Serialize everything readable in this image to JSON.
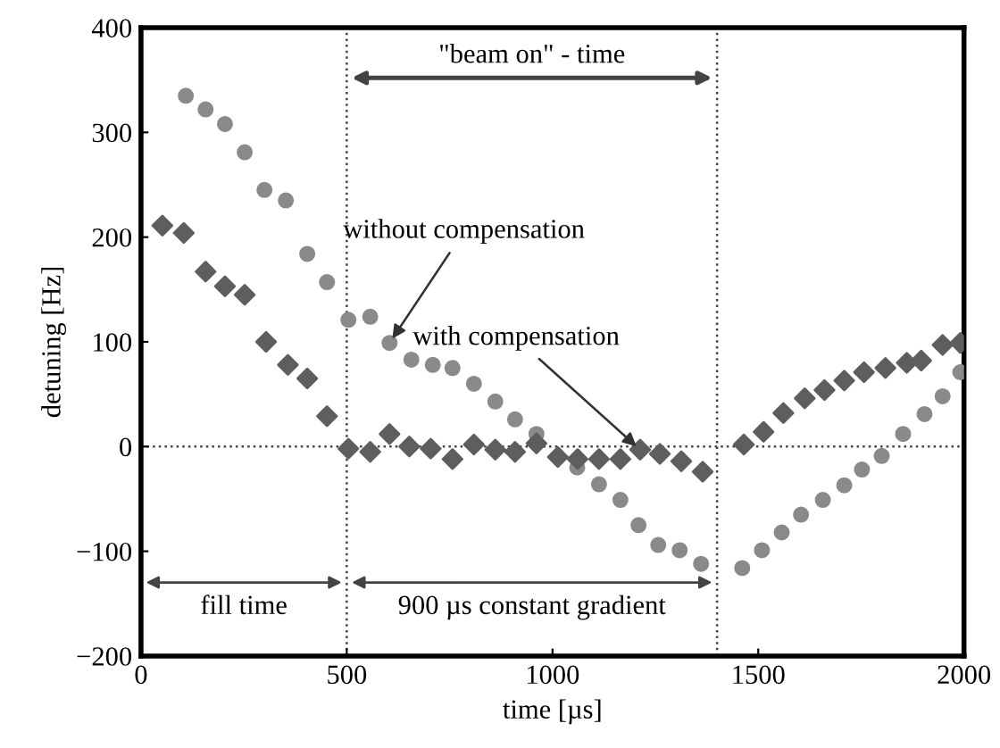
{
  "chart_data": {
    "type": "scatter",
    "xlabel": "time [µs]",
    "ylabel": "detuning [Hz]",
    "xlim": [
      0,
      2000
    ],
    "ylim": [
      -200,
      400
    ],
    "xticks": [
      0,
      500,
      1000,
      1500,
      2000
    ],
    "yticks": [
      {
        "value": -200,
        "label": "−200"
      },
      {
        "value": -100,
        "label": "−100"
      },
      0,
      100,
      200,
      300,
      400
    ],
    "grid": false,
    "legend": false,
    "series": [
      {
        "marker": "circle",
        "color": "#8a8a8a",
        "x": [
          109,
          157,
          204,
          252,
          300,
          352,
          404,
          452,
          504,
          557,
          604,
          657,
          709,
          757,
          809,
          861,
          909,
          961,
          1010,
          1060,
          1113,
          1165,
          1209,
          1257,
          1309,
          1361,
          1461,
          1509,
          1557,
          1604,
          1657,
          1709,
          1752,
          1800,
          1852,
          1904,
          1948,
          1991
        ],
        "values": [
          335,
          322,
          308,
          281,
          245,
          235,
          184,
          157,
          121,
          124,
          99,
          83,
          78,
          75,
          60,
          43,
          26,
          12,
          null,
          -20,
          -36,
          -51,
          -75,
          -94,
          -99,
          -112,
          -116,
          -99,
          -82,
          -65,
          -51,
          -37,
          -22,
          -9,
          12,
          31,
          48,
          71
        ]
      },
      {
        "marker": "diamond",
        "color": "#5e5e5e",
        "x": [
          52,
          104,
          157,
          204,
          252,
          304,
          357,
          404,
          452,
          504,
          557,
          604,
          652,
          704,
          757,
          809,
          861,
          909,
          961,
          1013,
          1061,
          1113,
          1165,
          1213,
          1261,
          1313,
          1365,
          1465,
          1513,
          1561,
          1613,
          1661,
          1709,
          1757,
          1809,
          1861,
          1896,
          1948,
          1991
        ],
        "values": [
          211,
          204,
          167,
          153,
          145,
          100,
          78,
          65,
          29,
          -2,
          -5,
          12,
          0,
          -2,
          -12,
          2,
          -3,
          -5,
          3,
          -10,
          -12,
          -12,
          -12,
          -3,
          -7,
          -14,
          -24,
          2,
          14,
          32,
          46,
          54,
          63,
          71,
          75,
          80,
          82,
          97,
          99
        ]
      }
    ],
    "ref_lines": [
      {
        "axis": "x",
        "value": 500,
        "line_style": "dotted"
      },
      {
        "axis": "x",
        "value": 1400,
        "line_style": "dotted"
      },
      {
        "axis": "y",
        "value": 0,
        "line_style": "dotted"
      }
    ],
    "annotations": [
      {
        "text": "without compensation",
        "x": 604,
        "y": 99
      },
      {
        "text": "with compensation",
        "x": 1213,
        "y": -3
      },
      "\"beam on\" - time",
      "fill time",
      "900 µs constant gradient"
    ]
  }
}
